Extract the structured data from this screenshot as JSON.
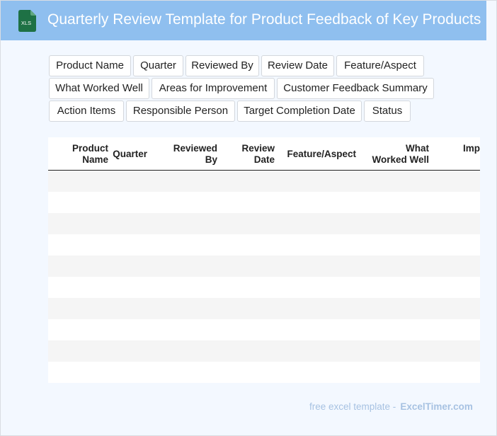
{
  "header": {
    "icon": "xls-file-icon",
    "icon_label": "XLS",
    "title": "Quarterly Review Template for Product Feedback of Key Products"
  },
  "field_chips": {
    "rows": [
      [
        "Product Name",
        "Quarter",
        "Reviewed By",
        "Review Date",
        "Feature/Aspect"
      ],
      [
        "What Worked Well",
        "Areas for Improvement",
        "Customer Feedback Summary"
      ],
      [
        "Action Items",
        "Responsible Person",
        "Target Completion Date",
        "Status"
      ]
    ]
  },
  "table": {
    "columns": [
      {
        "line1": "Product",
        "line2": "Name"
      },
      {
        "line1": "Quarter",
        "line2": ""
      },
      {
        "line1": "Reviewed",
        "line2": "By"
      },
      {
        "line1": "Review",
        "line2": "Date"
      },
      {
        "line1": "Feature/Aspect",
        "line2": ""
      },
      {
        "line1": "What",
        "line2": "Worked Well"
      },
      {
        "line1": "",
        "line2": "Imp"
      }
    ],
    "row_count": 10
  },
  "footer": {
    "prefix": "free excel template -",
    "brand": "ExcelTimer.com"
  },
  "colors": {
    "header_bg": "#8fbfef",
    "page_bg": "#f3f8ff",
    "icon_green": "#1e7145",
    "footer_text": "#a7c2e2"
  }
}
